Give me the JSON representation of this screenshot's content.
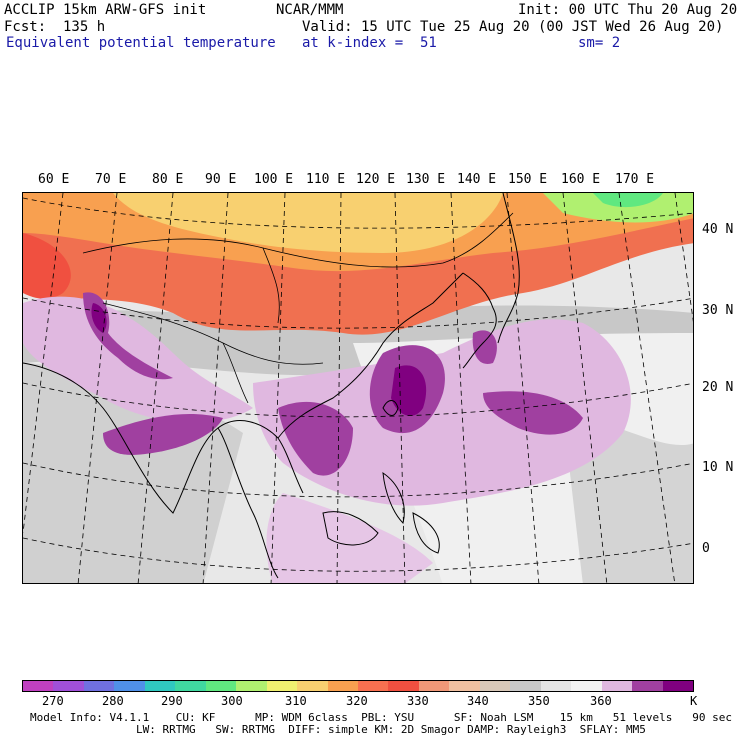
{
  "header": {
    "model_line": "ACCLIP 15km ARW-GFS init",
    "org": "NCAR/MMM",
    "init": "Init: 00 UTC Thu 20 Aug 20",
    "forecast": "Fcst:  135 h",
    "valid": "Valid: 15 UTC Tue 25 Aug 20 (00 JST Wed 26 Aug 20)",
    "field": "Equivalent potential temperature",
    "level": "at k-index =  51",
    "smoothing": "sm= 2"
  },
  "map": {
    "longitude_labels": [
      "60 E",
      "70 E",
      "80 E",
      "90 E",
      "100 E",
      "110 E",
      "120 E",
      "130 E",
      "140 E",
      "150 E",
      "160 E",
      "170 E"
    ],
    "latitude_labels": [
      "40 N",
      "30 N",
      "20 N",
      "10 N",
      "0"
    ]
  },
  "colorbar": {
    "colors": [
      "#c040c0",
      "#a050d8",
      "#7070e0",
      "#5090e8",
      "#30c8c0",
      "#40d8a0",
      "#60e880",
      "#b0f070",
      "#f0f070",
      "#f8d070",
      "#f8a050",
      "#f87050",
      "#f05040",
      "#f09878",
      "#f0c0a0",
      "#d8c8b8",
      "#c8c8c8",
      "#e4e4e4",
      "#f2f2f2",
      "#e0b8e0",
      "#a040a0",
      "#800080"
    ],
    "tick_labels": [
      "270",
      "280",
      "290",
      "300",
      "310",
      "320",
      "330",
      "340",
      "350",
      "360"
    ],
    "unit": "K"
  },
  "footer": {
    "line1": "Model Info: V4.1.1    CU: KF      MP: WDM 6class  PBL: YSU      SF: Noah LSM    15 km   51 levels   90 sec",
    "line2": "                LW: RRTMG   SW: RRTMG  DIFF: simple KM: 2D Smagor DAMP: Rayleigh3  SFLAY: MM5"
  }
}
